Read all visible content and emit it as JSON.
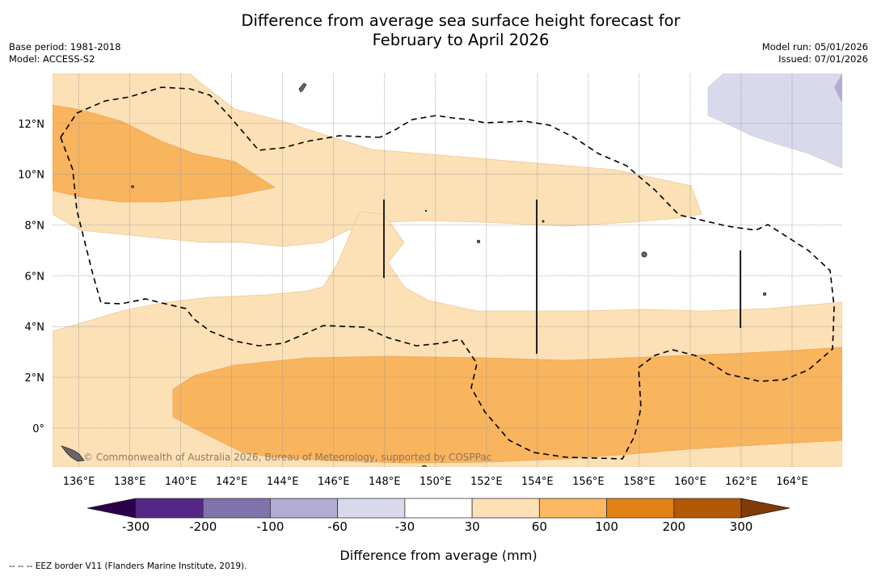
{
  "title_line1": "Difference from average sea surface height forecast for",
  "title_line2": "February to April 2026",
  "base_period": "Base period: 1981-2018",
  "model": "Model: ACCESS-S2",
  "model_run": "Model run: 05/01/2026",
  "issued": "Issued: 07/01/2026",
  "copyright": "© Commonwealth of Australia 2026, Bureau of Meteorology, supported by COSPPac",
  "footnote": "--  --  -- EEZ border V11 (Flanders Marine Institute, 2019).",
  "colorbar": {
    "label": "Difference from average (mm)",
    "ticks": [
      "-300",
      "-200",
      "-100",
      "-60",
      "-30",
      "30",
      "60",
      "100",
      "200",
      "300"
    ],
    "colors": [
      "#2d004b",
      "#542788",
      "#8073ac",
      "#b2abd2",
      "#d8daeb",
      "#ffffff",
      "#fee0b6",
      "#fdb863",
      "#e08214",
      "#b35806",
      "#7f3b08"
    ]
  },
  "map": {
    "lon_range": [
      135,
      166
    ],
    "lat_range": [
      -1.5,
      14
    ],
    "lon_ticks": [
      "136°E",
      "138°E",
      "140°E",
      "142°E",
      "144°E",
      "146°E",
      "148°E",
      "150°E",
      "152°E",
      "154°E",
      "156°E",
      "158°E",
      "160°E",
      "162°E",
      "164°E"
    ],
    "lon_values": [
      136,
      138,
      140,
      142,
      144,
      146,
      148,
      150,
      152,
      154,
      156,
      158,
      160,
      162,
      164
    ],
    "lat_ticks": [
      "0°",
      "2°N",
      "4°N",
      "6°N",
      "8°N",
      "10°N",
      "12°N"
    ],
    "lat_values": [
      0,
      2,
      4,
      6,
      8,
      10,
      12
    ],
    "legend_categories": {
      "light_orange": "30 to 60 mm",
      "orange": "60 to 100 mm",
      "light_purple": "-60 to -30 mm",
      "purple": "-100 to -60 mm"
    }
  }
}
